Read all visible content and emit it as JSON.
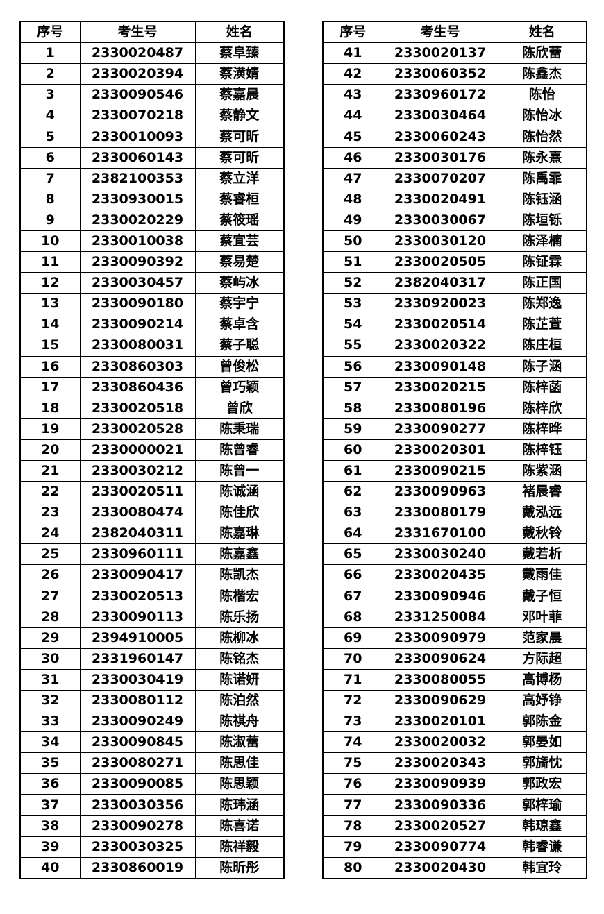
{
  "headers": [
    "序号",
    "考生号",
    "姓名"
  ],
  "left_rows": [
    [
      "1",
      "2330020487",
      "蔡阜臻"
    ],
    [
      "2",
      "2330020394",
      "蔡潢婧"
    ],
    [
      "3",
      "2330090546",
      "蔡嘉晨"
    ],
    [
      "4",
      "2330070218",
      "蔡静文"
    ],
    [
      "5",
      "2330010093",
      "蔡可昕"
    ],
    [
      "6",
      "2330060143",
      "蔡可昕"
    ],
    [
      "7",
      "2382100353",
      "蔡立洋"
    ],
    [
      "8",
      "2330930015",
      "蔡睿桓"
    ],
    [
      "9",
      "2330020229",
      "蔡筱瑶"
    ],
    [
      "10",
      "2330010038",
      "蔡宜芸"
    ],
    [
      "11",
      "2330090392",
      "蔡易楚"
    ],
    [
      "12",
      "2330030457",
      "蔡屿冰"
    ],
    [
      "13",
      "2330090180",
      "蔡宇宁"
    ],
    [
      "14",
      "2330090214",
      "蔡卓含"
    ],
    [
      "15",
      "2330080031",
      "蔡子聪"
    ],
    [
      "16",
      "2330860303",
      "曾俊松"
    ],
    [
      "17",
      "2330860436",
      "曾巧颖"
    ],
    [
      "18",
      "2330020518",
      "曾欣"
    ],
    [
      "19",
      "2330020528",
      "陈秉瑞"
    ],
    [
      "20",
      "2330000021",
      "陈曾睿"
    ],
    [
      "21",
      "2330030212",
      "陈曾一"
    ],
    [
      "22",
      "2330020511",
      "陈诚涵"
    ],
    [
      "23",
      "2330080474",
      "陈佳欣"
    ],
    [
      "24",
      "2382040311",
      "陈嘉琳"
    ],
    [
      "25",
      "2330960111",
      "陈嘉鑫"
    ],
    [
      "26",
      "2330090417",
      "陈凯杰"
    ],
    [
      "27",
      "2330020513",
      "陈楷宏"
    ],
    [
      "28",
      "2330090113",
      "陈乐扬"
    ],
    [
      "29",
      "2394910005",
      "陈柳冰"
    ],
    [
      "30",
      "2331960147",
      "陈铭杰"
    ],
    [
      "31",
      "2330030419",
      "陈诺妍"
    ],
    [
      "32",
      "2330080112",
      "陈泊然"
    ],
    [
      "33",
      "2330090249",
      "陈祺舟"
    ],
    [
      "34",
      "2330090845",
      "陈淑蕾"
    ],
    [
      "35",
      "2330080271",
      "陈思佳"
    ],
    [
      "36",
      "2330090085",
      "陈思颖"
    ],
    [
      "37",
      "2330030356",
      "陈玮涵"
    ],
    [
      "38",
      "2330090278",
      "陈喜诺"
    ],
    [
      "39",
      "2330030325",
      "陈祥毅"
    ],
    [
      "40",
      "2330860019",
      "陈昕彤"
    ]
  ],
  "right_rows": [
    [
      "41",
      "2330020137",
      "陈欣蕾"
    ],
    [
      "42",
      "2330060352",
      "陈鑫杰"
    ],
    [
      "43",
      "2330960172",
      "陈怡"
    ],
    [
      "44",
      "2330030464",
      "陈怡冰"
    ],
    [
      "45",
      "2330060243",
      "陈怡然"
    ],
    [
      "46",
      "2330030176",
      "陈永熹"
    ],
    [
      "47",
      "2330070207",
      "陈禹霏"
    ],
    [
      "48",
      "2330020491",
      "陈钰涵"
    ],
    [
      "49",
      "2330030067",
      "陈垣铄"
    ],
    [
      "50",
      "2330030120",
      "陈泽楠"
    ],
    [
      "51",
      "2330020505",
      "陈钲霖"
    ],
    [
      "52",
      "2382040317",
      "陈正国"
    ],
    [
      "53",
      "2330920023",
      "陈郑逸"
    ],
    [
      "54",
      "2330020514",
      "陈芷萱"
    ],
    [
      "55",
      "2330020322",
      "陈庄桓"
    ],
    [
      "56",
      "2330090148",
      "陈子涵"
    ],
    [
      "57",
      "2330020215",
      "陈梓菡"
    ],
    [
      "58",
      "2330080196",
      "陈梓欣"
    ],
    [
      "59",
      "2330090277",
      "陈梓晔"
    ],
    [
      "60",
      "2330020301",
      "陈梓钰"
    ],
    [
      "61",
      "2330090215",
      "陈紫涵"
    ],
    [
      "62",
      "2330090963",
      "褚晨睿"
    ],
    [
      "63",
      "2330080179",
      "戴泓远"
    ],
    [
      "64",
      "2331670100",
      "戴秋铃"
    ],
    [
      "65",
      "2330030240",
      "戴若析"
    ],
    [
      "66",
      "2330020435",
      "戴雨佳"
    ],
    [
      "67",
      "2330090946",
      "戴子恒"
    ],
    [
      "68",
      "2331250084",
      "邓叶菲"
    ],
    [
      "69",
      "2330090979",
      "范家晨"
    ],
    [
      "70",
      "2330090624",
      "方际超"
    ],
    [
      "71",
      "2330080055",
      "高博杨"
    ],
    [
      "72",
      "2330090629",
      "高妤铮"
    ],
    [
      "73",
      "2330020101",
      "郭陈金"
    ],
    [
      "74",
      "2330020032",
      "郭晏如"
    ],
    [
      "75",
      "2330020343",
      "郭旖忱"
    ],
    [
      "76",
      "2330090939",
      "郭政宏"
    ],
    [
      "77",
      "2330090336",
      "郭梓瑜"
    ],
    [
      "78",
      "2330020527",
      "韩琼鑫"
    ],
    [
      "79",
      "2330090774",
      "韩睿谦"
    ],
    [
      "80",
      "2330020430",
      "韩宜玲"
    ]
  ]
}
